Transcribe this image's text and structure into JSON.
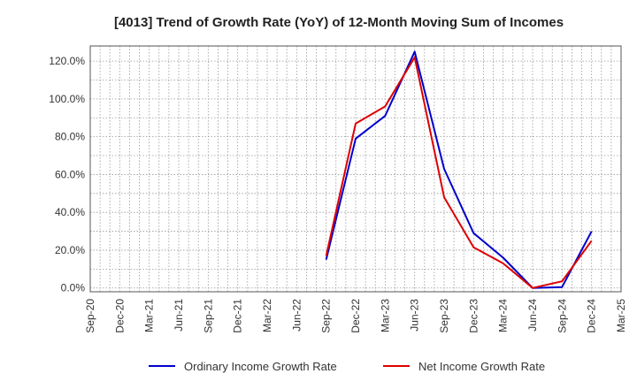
{
  "chart_data": {
    "type": "line",
    "title": "[4013]  Trend of Growth Rate (YoY) of 12-Month Moving Sum of Incomes",
    "x_ticks": [
      "Sep-20",
      "Dec-20",
      "Mar-21",
      "Jun-21",
      "Sep-21",
      "Dec-21",
      "Mar-22",
      "Jun-22",
      "Sep-22",
      "Dec-22",
      "Mar-23",
      "Jun-23",
      "Sep-23",
      "Dec-23",
      "Mar-24",
      "Jun-24",
      "Sep-24",
      "Dec-24",
      "Mar-25"
    ],
    "y_ticks": [
      "0.0%",
      "20.0%",
      "40.0%",
      "60.0%",
      "80.0%",
      "100.0%",
      "120.0%"
    ],
    "ylim": [
      -2,
      128
    ],
    "grid": true,
    "legend_position": "bottom",
    "series": [
      {
        "name": "Ordinary Income Growth Rate",
        "color": "#0000cc",
        "points": [
          {
            "x": "Sep-22",
            "y": 15
          },
          {
            "x": "Dec-22",
            "y": 79
          },
          {
            "x": "Mar-23",
            "y": 91
          },
          {
            "x": "Jun-23",
            "y": 125
          },
          {
            "x": "Sep-23",
            "y": 63
          },
          {
            "x": "Dec-23",
            "y": 29
          },
          {
            "x": "Mar-24",
            "y": 16
          },
          {
            "x": "Jun-24",
            "y": 0
          },
          {
            "x": "Sep-24",
            "y": 0.5
          },
          {
            "x": "Dec-24",
            "y": 30
          }
        ]
      },
      {
        "name": "Net Income Growth Rate",
        "color": "#dd0000",
        "points": [
          {
            "x": "Sep-22",
            "y": 17
          },
          {
            "x": "Dec-22",
            "y": 87
          },
          {
            "x": "Mar-23",
            "y": 96
          },
          {
            "x": "Jun-23",
            "y": 122
          },
          {
            "x": "Sep-23",
            "y": 48
          },
          {
            "x": "Dec-23",
            "y": 21.5
          },
          {
            "x": "Mar-24",
            "y": 13
          },
          {
            "x": "Jun-24",
            "y": 0
          },
          {
            "x": "Sep-24",
            "y": 3.5
          },
          {
            "x": "Dec-24",
            "y": 25
          }
        ]
      }
    ]
  }
}
